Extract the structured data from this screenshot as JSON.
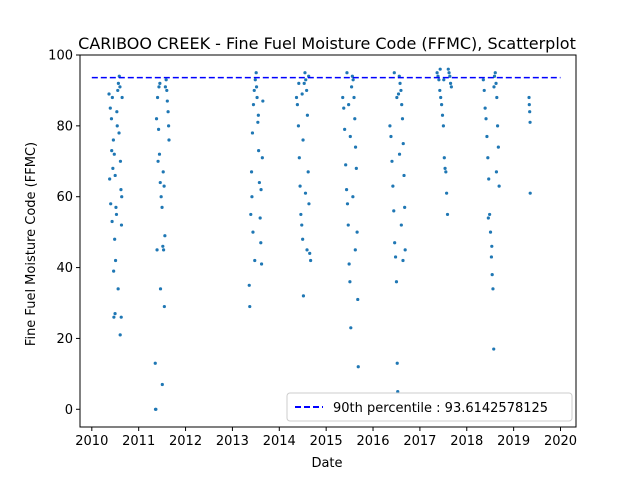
{
  "chart_data": {
    "type": "scatter",
    "title": "CARIBOO CREEK - Fine Fuel Moisture Code (FFMC), Scatterplot",
    "xlabel": "Date",
    "ylabel": "Fine Fuel Moisture Code (FFMC)",
    "xlim": [
      "2009-10-01",
      "2020-05-01"
    ],
    "ylim": [
      -5,
      100
    ],
    "x_ticks": [
      "2010",
      "2011",
      "2012",
      "2013",
      "2014",
      "2015",
      "2016",
      "2017",
      "2018",
      "2019",
      "2020"
    ],
    "y_ticks": [
      0,
      20,
      40,
      60,
      80,
      100
    ],
    "grid": false,
    "legend_position": "lower-right",
    "point_color": "#1f77b4",
    "reference_line": {
      "label": "90th percentile : 93.6142578125",
      "value": 93.6142578125,
      "color": "#0000ff",
      "style": "dashed"
    },
    "series": [
      {
        "values": [
          [
            "2010-05-15",
            89
          ],
          [
            "2010-05-25",
            85
          ],
          [
            "2010-06-03",
            82
          ],
          [
            "2010-06-10",
            88
          ],
          [
            "2010-06-18",
            76
          ],
          [
            "2010-06-25",
            72
          ],
          [
            "2010-07-02",
            66
          ],
          [
            "2010-07-08",
            57
          ],
          [
            "2010-07-12",
            55
          ],
          [
            "2010-07-18",
            80
          ],
          [
            "2010-07-22",
            90
          ],
          [
            "2010-07-27",
            92
          ],
          [
            "2010-08-03",
            94
          ],
          [
            "2010-08-08",
            91
          ],
          [
            "2010-08-12",
            70
          ],
          [
            "2010-08-16",
            62
          ],
          [
            "2010-08-20",
            52
          ],
          [
            "2010-06-28",
            48
          ],
          [
            "2010-07-05",
            42
          ],
          [
            "2010-06-20",
            39
          ],
          [
            "2010-07-25",
            34
          ],
          [
            "2010-07-01",
            27
          ],
          [
            "2010-06-22",
            26
          ],
          [
            "2010-08-18",
            26
          ],
          [
            "2010-08-10",
            21
          ],
          [
            "2010-05-20",
            65
          ],
          [
            "2010-06-05",
            73
          ],
          [
            "2010-06-14",
            68
          ],
          [
            "2010-07-15",
            84
          ],
          [
            "2010-08-01",
            78
          ],
          [
            "2010-08-22",
            60
          ],
          [
            "2010-05-28",
            58
          ],
          [
            "2010-06-08",
            53
          ],
          [
            "2010-08-25",
            88
          ],
          [
            "2011-05-10",
            13
          ],
          [
            "2011-05-12",
            0
          ],
          [
            "2011-05-15",
            0
          ],
          [
            "2011-05-20",
            82
          ],
          [
            "2011-05-28",
            88
          ],
          [
            "2011-06-05",
            79
          ],
          [
            "2011-06-12",
            72
          ],
          [
            "2011-06-18",
            64
          ],
          [
            "2011-06-25",
            60
          ],
          [
            "2011-07-02",
            57
          ],
          [
            "2011-07-08",
            46
          ],
          [
            "2011-07-14",
            45
          ],
          [
            "2011-07-20",
            29
          ],
          [
            "2011-07-24",
            49
          ],
          [
            "2011-07-28",
            91
          ],
          [
            "2011-08-03",
            93
          ],
          [
            "2011-08-08",
            90
          ],
          [
            "2011-08-12",
            87
          ],
          [
            "2011-08-18",
            84
          ],
          [
            "2011-08-22",
            80
          ],
          [
            "2011-06-20",
            34
          ],
          [
            "2011-07-04",
            7
          ],
          [
            "2011-06-08",
            91
          ],
          [
            "2011-06-15",
            92
          ],
          [
            "2011-07-11",
            67
          ],
          [
            "2011-07-18",
            63
          ],
          [
            "2011-08-25",
            76
          ],
          [
            "2011-05-24",
            45
          ],
          [
            "2011-06-01",
            70
          ],
          [
            "2013-05-12",
            35
          ],
          [
            "2013-05-16",
            29
          ],
          [
            "2013-05-24",
            55
          ],
          [
            "2013-05-30",
            67
          ],
          [
            "2013-06-06",
            78
          ],
          [
            "2013-06-14",
            86
          ],
          [
            "2013-06-20",
            90
          ],
          [
            "2013-06-28",
            93
          ],
          [
            "2013-07-05",
            95
          ],
          [
            "2013-07-12",
            88
          ],
          [
            "2013-07-18",
            81
          ],
          [
            "2013-07-24",
            73
          ],
          [
            "2013-07-30",
            64
          ],
          [
            "2013-08-05",
            54
          ],
          [
            "2013-08-10",
            47
          ],
          [
            "2013-08-16",
            41
          ],
          [
            "2013-08-22",
            71
          ],
          [
            "2013-06-02",
            60
          ],
          [
            "2013-06-24",
            42
          ],
          [
            "2013-07-08",
            91
          ],
          [
            "2013-07-22",
            83
          ],
          [
            "2013-08-12",
            62
          ],
          [
            "2013-08-26",
            87
          ],
          [
            "2013-06-10",
            50
          ],
          [
            "2014-05-15",
            88
          ],
          [
            "2014-05-22",
            86
          ],
          [
            "2014-05-30",
            80
          ],
          [
            "2014-06-06",
            71
          ],
          [
            "2014-06-12",
            63
          ],
          [
            "2014-06-18",
            55
          ],
          [
            "2014-06-25",
            52
          ],
          [
            "2014-07-02",
            48
          ],
          [
            "2014-07-08",
            32
          ],
          [
            "2014-07-14",
            92
          ],
          [
            "2014-07-20",
            95
          ],
          [
            "2014-07-26",
            93
          ],
          [
            "2014-08-02",
            90
          ],
          [
            "2014-08-08",
            83
          ],
          [
            "2014-08-14",
            67
          ],
          [
            "2014-08-20",
            58
          ],
          [
            "2014-08-26",
            44
          ],
          [
            "2014-09-02",
            42
          ],
          [
            "2014-06-28",
            89
          ],
          [
            "2014-07-05",
            76
          ],
          [
            "2014-07-24",
            61
          ],
          [
            "2014-08-05",
            45
          ],
          [
            "2014-08-18",
            94
          ],
          [
            "2014-06-02",
            92
          ],
          [
            "2015-05-10",
            88
          ],
          [
            "2015-05-18",
            85
          ],
          [
            "2015-05-25",
            79
          ],
          [
            "2015-06-02",
            69
          ],
          [
            "2015-06-09",
            62
          ],
          [
            "2015-06-16",
            58
          ],
          [
            "2015-06-22",
            52
          ],
          [
            "2015-06-29",
            41
          ],
          [
            "2015-07-05",
            36
          ],
          [
            "2015-07-12",
            23
          ],
          [
            "2015-07-18",
            91
          ],
          [
            "2015-07-24",
            94
          ],
          [
            "2015-07-30",
            93
          ],
          [
            "2015-08-06",
            88
          ],
          [
            "2015-08-12",
            82
          ],
          [
            "2015-08-18",
            74
          ],
          [
            "2015-08-24",
            68
          ],
          [
            "2015-08-30",
            50
          ],
          [
            "2015-09-04",
            31
          ],
          [
            "2015-09-08",
            12
          ],
          [
            "2015-06-12",
            95
          ],
          [
            "2015-07-08",
            77
          ],
          [
            "2015-07-28",
            60
          ],
          [
            "2015-08-16",
            45
          ],
          [
            "2015-06-25",
            86
          ],
          [
            "2016-05-12",
            80
          ],
          [
            "2016-05-20",
            77
          ],
          [
            "2016-05-28",
            70
          ],
          [
            "2016-06-04",
            63
          ],
          [
            "2016-06-11",
            56
          ],
          [
            "2016-06-18",
            47
          ],
          [
            "2016-06-25",
            43
          ],
          [
            "2016-07-02",
            36
          ],
          [
            "2016-07-08",
            13
          ],
          [
            "2016-07-12",
            5
          ],
          [
            "2016-07-18",
            89
          ],
          [
            "2016-07-24",
            94
          ],
          [
            "2016-07-30",
            92
          ],
          [
            "2016-08-06",
            90
          ],
          [
            "2016-08-12",
            86
          ],
          [
            "2016-08-18",
            82
          ],
          [
            "2016-08-24",
            75
          ],
          [
            "2016-08-30",
            66
          ],
          [
            "2016-09-04",
            57
          ],
          [
            "2016-09-08",
            45
          ],
          [
            "2016-06-15",
            95
          ],
          [
            "2016-07-05",
            88
          ],
          [
            "2016-07-26",
            72
          ],
          [
            "2016-08-09",
            52
          ],
          [
            "2016-08-22",
            42
          ],
          [
            "2017-05-15",
            95
          ],
          [
            "2017-05-22",
            94
          ],
          [
            "2017-05-29",
            93
          ],
          [
            "2017-06-05",
            90
          ],
          [
            "2017-06-12",
            88
          ],
          [
            "2017-06-19",
            86
          ],
          [
            "2017-06-26",
            83
          ],
          [
            "2017-07-03",
            80
          ],
          [
            "2017-07-10",
            71
          ],
          [
            "2017-07-16",
            68
          ],
          [
            "2017-07-22",
            67
          ],
          [
            "2017-07-28",
            61
          ],
          [
            "2017-08-04",
            55
          ],
          [
            "2017-08-10",
            96
          ],
          [
            "2017-08-16",
            95
          ],
          [
            "2017-08-22",
            94
          ],
          [
            "2017-08-28",
            92
          ],
          [
            "2017-09-03",
            91
          ],
          [
            "2017-06-08",
            96
          ],
          [
            "2017-07-06",
            93
          ],
          [
            "2018-05-10",
            93
          ],
          [
            "2018-05-17",
            90
          ],
          [
            "2018-05-24",
            85
          ],
          [
            "2018-05-31",
            82
          ],
          [
            "2018-06-07",
            77
          ],
          [
            "2018-06-14",
            71
          ],
          [
            "2018-06-21",
            65
          ],
          [
            "2018-06-28",
            55
          ],
          [
            "2018-07-05",
            50
          ],
          [
            "2018-07-12",
            43
          ],
          [
            "2018-07-18",
            38
          ],
          [
            "2018-07-24",
            34
          ],
          [
            "2018-07-30",
            17
          ],
          [
            "2018-08-05",
            94
          ],
          [
            "2018-08-11",
            95
          ],
          [
            "2018-08-17",
            92
          ],
          [
            "2018-08-23",
            88
          ],
          [
            "2018-08-29",
            80
          ],
          [
            "2018-09-04",
            74
          ],
          [
            "2018-09-10",
            63
          ],
          [
            "2018-06-18",
            54
          ],
          [
            "2018-07-15",
            46
          ],
          [
            "2018-08-01",
            91
          ],
          [
            "2018-08-20",
            67
          ],
          [
            "2019-05-01",
            88
          ],
          [
            "2019-05-03",
            86
          ],
          [
            "2019-05-06",
            84
          ],
          [
            "2019-05-09",
            81
          ],
          [
            "2019-05-10",
            61
          ]
        ]
      }
    ]
  }
}
